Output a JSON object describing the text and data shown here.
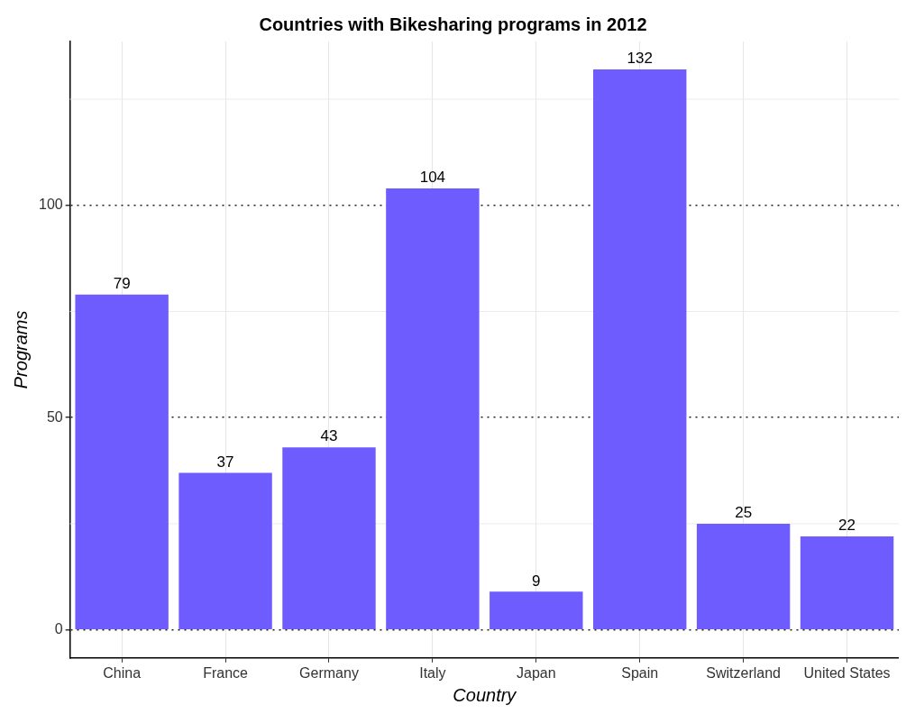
{
  "chart_data": {
    "type": "bar",
    "title": "Countries with Bikesharing programs in 2012",
    "xlabel": "Country",
    "ylabel": "Programs",
    "categories": [
      "China",
      "France",
      "Germany",
      "Italy",
      "Japan",
      "Spain",
      "Switzerland",
      "United States"
    ],
    "values": [
      79,
      37,
      43,
      104,
      9,
      132,
      25,
      22
    ],
    "color": "#6f5cff",
    "ylim": [
      -6.6,
      138.6
    ],
    "yticks": [
      0,
      50,
      100
    ],
    "grid": true,
    "data_labels": true
  }
}
